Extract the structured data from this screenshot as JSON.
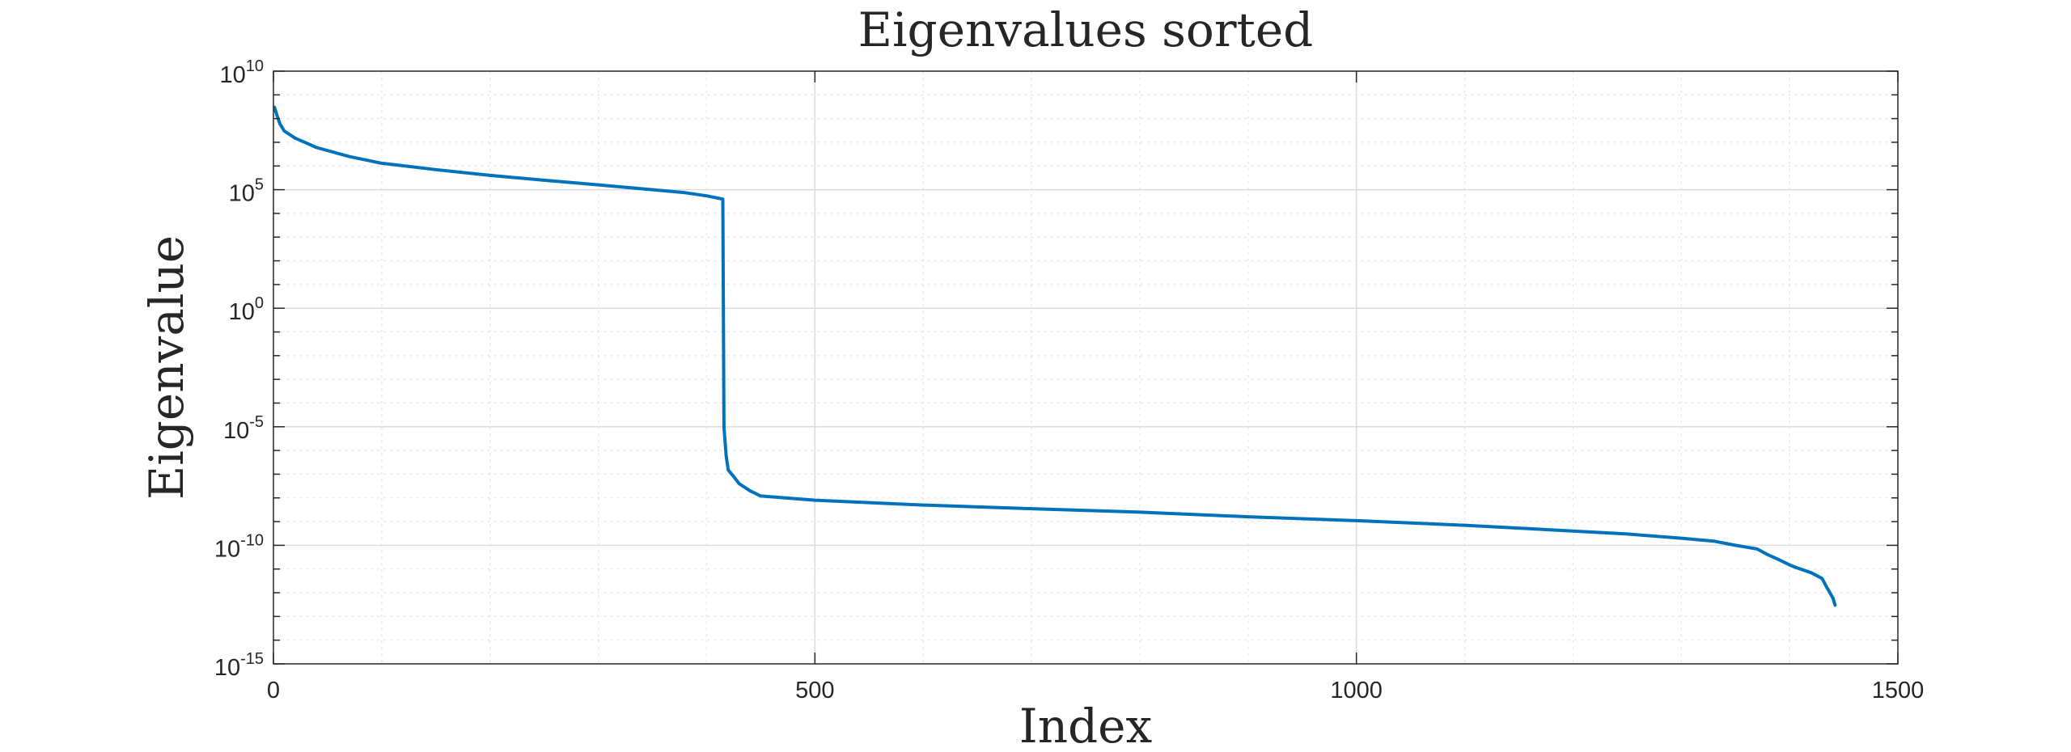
{
  "chart_data": {
    "type": "line",
    "title": "Eigenvalues sorted",
    "xlabel": "Index",
    "ylabel": "Eigenvalue",
    "xlim": [
      0,
      1500
    ],
    "ylim": [
      1e-15,
      10000000000.0
    ],
    "yscale": "log",
    "grid": true,
    "minor_grid": true,
    "line_color": "#0072BD",
    "x_ticks": [
      {
        "value": 0,
        "label": "0"
      },
      {
        "value": 500,
        "label": "500"
      },
      {
        "value": 1000,
        "label": "1000"
      },
      {
        "value": 1500,
        "label": "1500"
      }
    ],
    "y_ticks": [
      {
        "value": 10000000000.0,
        "base": "10",
        "exp": "10"
      },
      {
        "value": 100000.0,
        "base": "10",
        "exp": "5"
      },
      {
        "value": 1,
        "base": "10",
        "exp": "0"
      },
      {
        "value": 1e-05,
        "base": "10",
        "exp": "-5"
      },
      {
        "value": 1e-10,
        "base": "10",
        "exp": "-10"
      },
      {
        "value": 1e-15,
        "base": "10",
        "exp": "-15"
      }
    ],
    "series": [
      {
        "x": [
          1,
          3,
          6,
          10,
          20,
          40,
          70,
          100,
          150,
          200,
          250,
          300,
          350,
          380,
          400,
          415,
          416,
          418,
          420,
          425,
          430,
          440,
          450,
          500,
          600,
          700,
          800,
          900,
          1000,
          1100,
          1200,
          1250,
          1300,
          1330,
          1350,
          1370,
          1380,
          1390,
          1400,
          1405,
          1410,
          1420,
          1430,
          1435,
          1440,
          1442
        ],
        "y": [
          300000000.0,
          150000000.0,
          60000000.0,
          30000000.0,
          15000000.0,
          6000000.0,
          2500000.0,
          1300000.0,
          700000.0,
          400000.0,
          250000.0,
          160000.0,
          100000.0,
          75000.0,
          55000.0,
          40000.0,
          1e-05,
          6e-07,
          1.5e-07,
          8e-08,
          4e-08,
          2e-08,
          1.2e-08,
          8e-09,
          5e-09,
          3.5e-09,
          2.5e-09,
          1.6e-09,
          1.1e-09,
          7e-10,
          4e-10,
          3e-10,
          2e-10,
          1.5e-10,
          1e-10,
          7e-11,
          4e-11,
          2.5e-11,
          1.5e-11,
          1.2e-11,
          1e-11,
          7e-12,
          4e-12,
          1.5e-12,
          6e-13,
          3e-13
        ]
      }
    ]
  }
}
